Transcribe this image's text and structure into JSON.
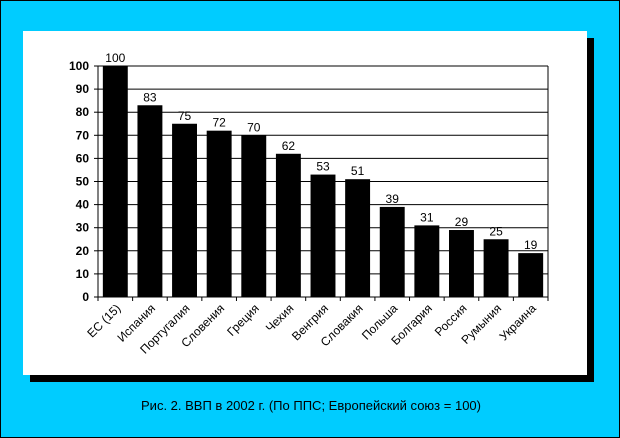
{
  "caption": "Рис. 2. ВВП в 2002 г. (По ППС; Европейский союз = 100)",
  "chart_data": {
    "type": "bar",
    "categories": [
      "ЕС (15)",
      "Испания",
      "Португалия",
      "Словения",
      "Греция",
      "Чехия",
      "Венгрия",
      "Словакия",
      "Польша",
      "Болгария",
      "Россия",
      "Румыния",
      "Украина"
    ],
    "values": [
      100,
      83,
      75,
      72,
      70,
      62,
      53,
      51,
      39,
      31,
      29,
      25,
      19
    ],
    "data_labels": [
      "100",
      "83",
      "75",
      "72",
      "70",
      "62",
      "53",
      "51",
      "39",
      "31",
      "29",
      "25",
      "19"
    ],
    "yticks": [
      0,
      10,
      20,
      30,
      40,
      50,
      60,
      70,
      80,
      90,
      100
    ],
    "ylim": [
      0,
      100
    ],
    "grid": true,
    "legend": "none",
    "bar_color": "#000000"
  }
}
